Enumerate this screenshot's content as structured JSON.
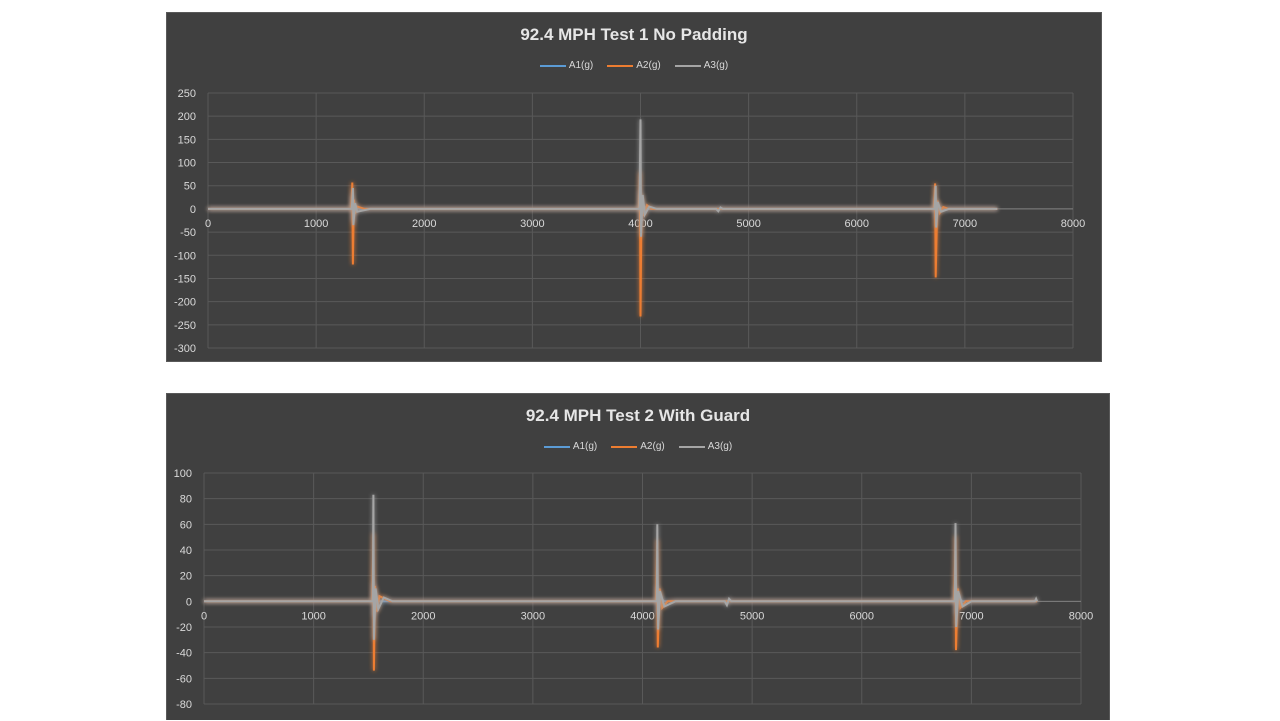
{
  "chart_data": [
    {
      "type": "line",
      "title": "92.4 MPH Test 1 No Padding",
      "xlabel": "",
      "ylabel": "",
      "xlim": [
        0,
        8000
      ],
      "ylim": [
        -300,
        250
      ],
      "x_ticks": [
        0,
        1000,
        2000,
        3000,
        4000,
        5000,
        6000,
        7000,
        8000
      ],
      "y_ticks": [
        250,
        200,
        150,
        100,
        50,
        0,
        -50,
        -100,
        -150,
        -200,
        -250,
        -300
      ],
      "grid": true,
      "legend_position": "top",
      "series": [
        {
          "name": "A1(g)",
          "color": "#5b9bd5",
          "points": [
            [
              0,
              0
            ],
            [
              1330,
              0
            ],
            [
              1335,
              30
            ],
            [
              1340,
              -25
            ],
            [
              1350,
              8
            ],
            [
              1400,
              0
            ],
            [
              3990,
              0
            ],
            [
              3995,
              40
            ],
            [
              4000,
              -30
            ],
            [
              4010,
              10
            ],
            [
              4060,
              0
            ],
            [
              6720,
              0
            ],
            [
              6725,
              25
            ],
            [
              6730,
              -20
            ],
            [
              6745,
              5
            ],
            [
              6800,
              0
            ],
            [
              7300,
              0
            ]
          ]
        },
        {
          "name": "A2(g)",
          "color": "#ed7d31",
          "points": [
            [
              0,
              0
            ],
            [
              1325,
              0
            ],
            [
              1335,
              57
            ],
            [
              1340,
              -120
            ],
            [
              1348,
              20
            ],
            [
              1360,
              -10
            ],
            [
              1380,
              5
            ],
            [
              1450,
              0
            ],
            [
              3985,
              0
            ],
            [
              3995,
              80
            ],
            [
              4000,
              -232
            ],
            [
              4010,
              30
            ],
            [
              4030,
              -15
            ],
            [
              4060,
              8
            ],
            [
              4100,
              0
            ],
            [
              6715,
              0
            ],
            [
              6725,
              55
            ],
            [
              6730,
              -148
            ],
            [
              6745,
              18
            ],
            [
              6770,
              -8
            ],
            [
              6800,
              4
            ],
            [
              6850,
              0
            ],
            [
              7300,
              0
            ]
          ]
        },
        {
          "name": "A3(g)",
          "color": "#a5a5a5",
          "points": [
            [
              0,
              0
            ],
            [
              1330,
              0
            ],
            [
              1340,
              45
            ],
            [
              1345,
              -35
            ],
            [
              1360,
              12
            ],
            [
              1380,
              -6
            ],
            [
              1500,
              0
            ],
            [
              3990,
              0
            ],
            [
              4000,
              193
            ],
            [
              4005,
              -60
            ],
            [
              4020,
              30
            ],
            [
              4040,
              -12
            ],
            [
              4080,
              5
            ],
            [
              4150,
              0
            ],
            [
              4700,
              0
            ],
            [
              4720,
              -5
            ],
            [
              4740,
              3
            ],
            [
              4760,
              0
            ],
            [
              6720,
              0
            ],
            [
              6730,
              50
            ],
            [
              6735,
              -40
            ],
            [
              6750,
              15
            ],
            [
              6780,
              -6
            ],
            [
              6850,
              0
            ],
            [
              7300,
              0
            ]
          ]
        }
      ]
    },
    {
      "type": "line",
      "title": "92.4 MPH Test 2 With Guard",
      "xlabel": "",
      "ylabel": "",
      "xlim": [
        0,
        8000
      ],
      "ylim": [
        -80,
        100
      ],
      "x_ticks": [
        0,
        1000,
        2000,
        3000,
        4000,
        5000,
        6000,
        7000,
        8000
      ],
      "y_ticks": [
        100,
        80,
        60,
        40,
        20,
        0,
        -20,
        -40,
        -60,
        -80
      ],
      "grid": true,
      "legend_position": "top",
      "series": [
        {
          "name": "A1(g)",
          "color": "#5b9bd5",
          "points": [
            [
              0,
              0
            ],
            [
              1540,
              0
            ],
            [
              1545,
              15
            ],
            [
              1550,
              -12
            ],
            [
              1560,
              4
            ],
            [
              1600,
              0
            ],
            [
              4130,
              0
            ],
            [
              4135,
              12
            ],
            [
              4140,
              -10
            ],
            [
              4150,
              3
            ],
            [
              4200,
              0
            ],
            [
              6850,
              0
            ],
            [
              6855,
              12
            ],
            [
              6860,
              -10
            ],
            [
              6870,
              3
            ],
            [
              6920,
              0
            ],
            [
              7600,
              0
            ]
          ]
        },
        {
          "name": "A2(g)",
          "color": "#ed7d31",
          "points": [
            [
              0,
              0
            ],
            [
              1535,
              0
            ],
            [
              1545,
              53
            ],
            [
              1550,
              -54
            ],
            [
              1560,
              12
            ],
            [
              1575,
              -8
            ],
            [
              1600,
              4
            ],
            [
              1700,
              0
            ],
            [
              4125,
              0
            ],
            [
              4135,
              48
            ],
            [
              4140,
              -36
            ],
            [
              4155,
              10
            ],
            [
              4180,
              -5
            ],
            [
              4230,
              0
            ],
            [
              6845,
              0
            ],
            [
              6855,
              51
            ],
            [
              6860,
              -38
            ],
            [
              6875,
              10
            ],
            [
              6900,
              -5
            ],
            [
              6950,
              0
            ],
            [
              7600,
              0
            ]
          ]
        },
        {
          "name": "A3(g)",
          "color": "#a5a5a5",
          "points": [
            [
              0,
              0
            ],
            [
              1540,
              0
            ],
            [
              1545,
              83
            ],
            [
              1550,
              -30
            ],
            [
              1565,
              10
            ],
            [
              1590,
              -6
            ],
            [
              1640,
              3
            ],
            [
              1720,
              0
            ],
            [
              4130,
              0
            ],
            [
              4135,
              60
            ],
            [
              4142,
              -22
            ],
            [
              4160,
              8
            ],
            [
              4200,
              -4
            ],
            [
              4300,
              0
            ],
            [
              4750,
              0
            ],
            [
              4770,
              -3
            ],
            [
              4790,
              2
            ],
            [
              4810,
              0
            ],
            [
              6850,
              0
            ],
            [
              6855,
              61
            ],
            [
              6862,
              -20
            ],
            [
              6880,
              8
            ],
            [
              6920,
              -4
            ],
            [
              7000,
              0
            ],
            [
              7580,
              0
            ],
            [
              7590,
              2
            ],
            [
              7600,
              0
            ]
          ]
        }
      ]
    }
  ]
}
